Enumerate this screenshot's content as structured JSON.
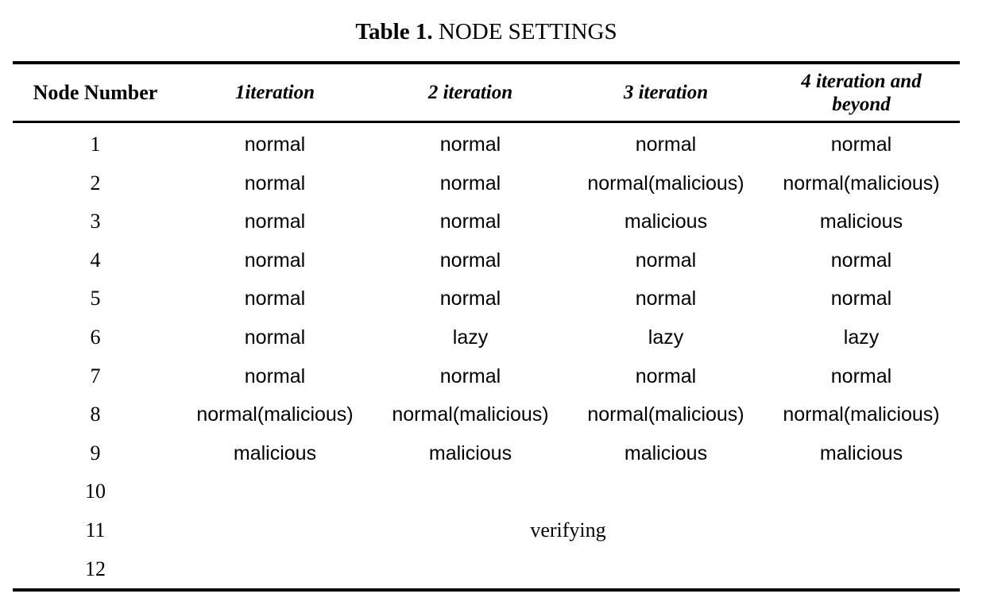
{
  "caption": {
    "label": "Table 1.",
    "title": "NODE SETTINGS"
  },
  "headers": [
    "Node Number",
    "1iteration",
    "2 iteration",
    "3 iteration",
    "4 iteration and beyond"
  ],
  "rows": [
    {
      "node": "1",
      "cells": [
        "normal",
        "normal",
        "normal",
        "normal"
      ]
    },
    {
      "node": "2",
      "cells": [
        "normal",
        "normal",
        "normal(malicious)",
        "normal(malicious)"
      ]
    },
    {
      "node": "3",
      "cells": [
        "normal",
        "normal",
        "malicious",
        "malicious"
      ]
    },
    {
      "node": "4",
      "cells": [
        "normal",
        "normal",
        "normal",
        "normal"
      ]
    },
    {
      "node": "5",
      "cells": [
        "normal",
        "normal",
        "normal",
        "normal"
      ]
    },
    {
      "node": "6",
      "cells": [
        "normal",
        "lazy",
        "lazy",
        "lazy"
      ]
    },
    {
      "node": "7",
      "cells": [
        "normal",
        "normal",
        "normal",
        "normal"
      ]
    },
    {
      "node": "8",
      "cells": [
        "normal(malicious)",
        "normal(malicious)",
        "normal(malicious)",
        "normal(malicious)"
      ]
    },
    {
      "node": "9",
      "cells": [
        "malicious",
        "malicious",
        "malicious",
        "malicious"
      ]
    },
    {
      "node": "10",
      "cells": []
    },
    {
      "node": "11",
      "cells": []
    },
    {
      "node": "12",
      "cells": []
    }
  ],
  "spanned_cell": "verifying"
}
